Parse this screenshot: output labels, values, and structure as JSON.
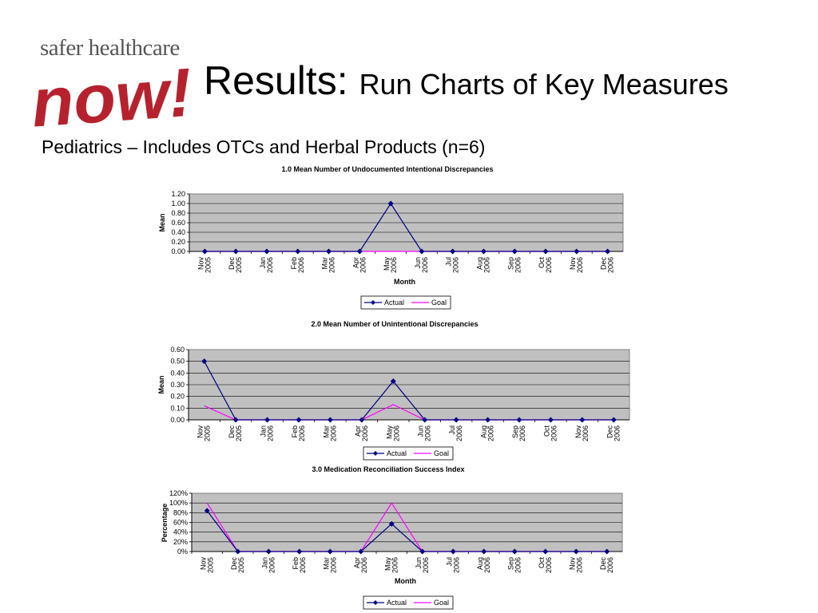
{
  "logo": {
    "top_text": "safer healthcare",
    "script_text": "now!"
  },
  "title": {
    "main": "Results:",
    "sub": "Run Charts of Key Measures"
  },
  "subtitle": "Pediatrics – Includes OTCs and Herbal Products (n=6)",
  "colors": {
    "actual": "#000080",
    "goal": "#ff00ff",
    "plot_bg": "#c0c0c0",
    "logo": "#b5222d"
  },
  "chart_data": [
    {
      "type": "line",
      "title": "1.0 Mean Number of Undocumented Intentional Discrepancies",
      "xlabel": "Month",
      "ylabel": "Mean",
      "categories": [
        "Nov 2005",
        "Dec 2005",
        "Jan 2006",
        "Feb 2006",
        "Mar 2006",
        "Apr 2006",
        "May 2006",
        "Jun 2006",
        "Jul 2006",
        "Aug 2006",
        "Sep 2006",
        "Oct 2006",
        "Nov 2006",
        "Dec 2006"
      ],
      "yticks": [
        "0.00",
        "0.20",
        "0.40",
        "0.60",
        "0.80",
        "1.00",
        "1.20"
      ],
      "ylim": [
        0,
        1.2
      ],
      "grid": true,
      "legend": "bottom",
      "series": [
        {
          "name": "Actual",
          "values": [
            0,
            0,
            0,
            0,
            0,
            0,
            1.0,
            0,
            0,
            0,
            0,
            0,
            0,
            0
          ]
        },
        {
          "name": "Goal",
          "values": [
            0,
            0,
            0,
            0,
            0,
            0,
            0,
            0,
            0,
            0,
            0,
            0,
            0,
            0
          ]
        }
      ]
    },
    {
      "type": "line",
      "title": "2.0 Mean Number of Unintentional Discrepancies",
      "xlabel": "",
      "ylabel": "Mean",
      "categories": [
        "Nov 2005",
        "Dec 2005",
        "Jan 2006",
        "Feb 2006",
        "Mar 2006",
        "Apr 2006",
        "May 2006",
        "Jun 2006",
        "Jul 2006",
        "Aug 2006",
        "Sep 2006",
        "Oct 2006",
        "Nov 2006",
        "Dec 2006"
      ],
      "yticks": [
        "0.00",
        "0.10",
        "0.20",
        "0.30",
        "0.40",
        "0.50",
        "0.60"
      ],
      "ylim": [
        0,
        0.6
      ],
      "grid": true,
      "legend": "bottom",
      "series": [
        {
          "name": "Actual",
          "values": [
            0.5,
            0,
            0,
            0,
            0,
            0,
            0.33,
            0,
            0,
            0,
            0,
            0,
            0,
            0
          ]
        },
        {
          "name": "Goal",
          "values": [
            0.12,
            0,
            0,
            0,
            0,
            0,
            0.13,
            0,
            0,
            0,
            0,
            0,
            0,
            0
          ]
        }
      ]
    },
    {
      "type": "line",
      "title": "3.0 Medication Reconciliation Success Index",
      "xlabel": "Month",
      "ylabel": "Percentage",
      "categories": [
        "Nov 2005",
        "Dec 2005",
        "Jan 2006",
        "Feb 2006",
        "Mar 2006",
        "Apr 2006",
        "May 2006",
        "Jun 2006",
        "Jul 2006",
        "Aug 2006",
        "Sep 2006",
        "Oct 2006",
        "Nov 2006",
        "Dec 2006"
      ],
      "yticks": [
        "0%",
        "20%",
        "40%",
        "60%",
        "80%",
        "100%",
        "120%"
      ],
      "ylim": [
        0,
        120
      ],
      "grid": true,
      "legend": "bottom",
      "series": [
        {
          "name": "Actual",
          "values": [
            84,
            0,
            0,
            0,
            0,
            0,
            57,
            0,
            0,
            0,
            0,
            0,
            0,
            0
          ]
        },
        {
          "name": "Goal",
          "values": [
            100,
            0,
            0,
            0,
            0,
            0,
            100,
            0,
            0,
            0,
            0,
            0,
            0,
            0
          ]
        }
      ]
    }
  ]
}
